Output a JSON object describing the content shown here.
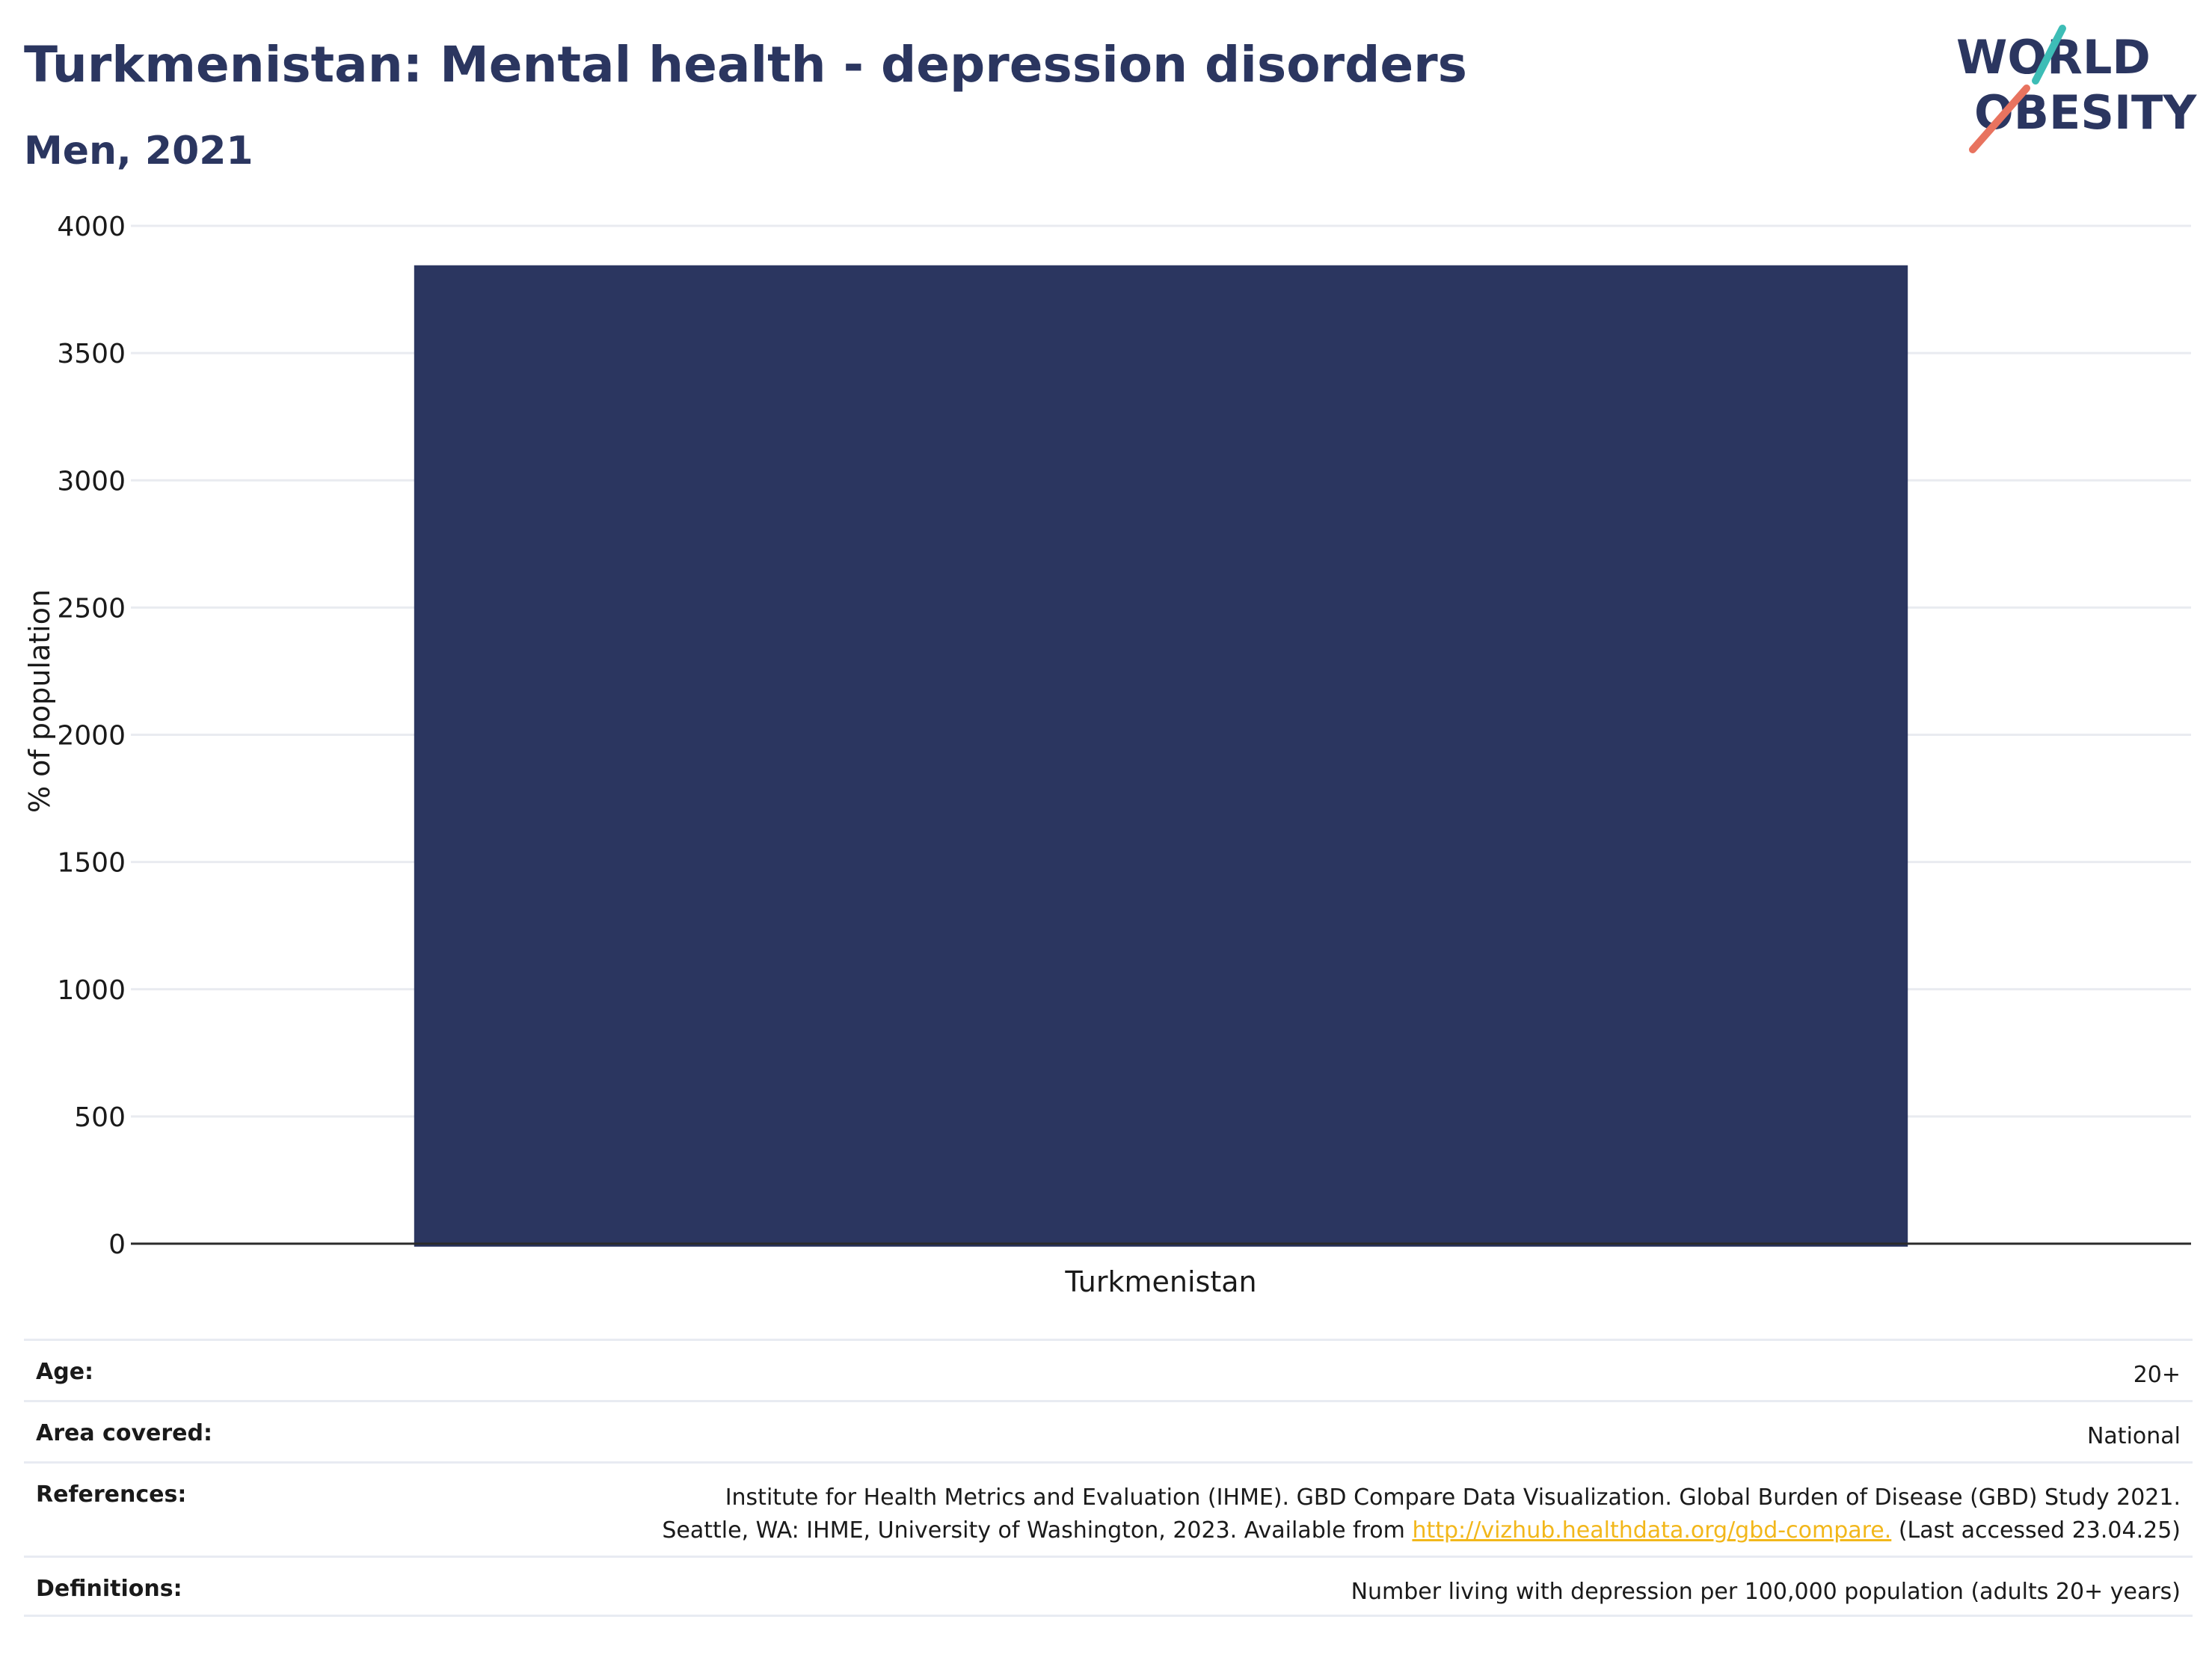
{
  "header": {
    "title": "Turkmenistan: Mental health - depression disorders",
    "subtitle": "Men, 2021"
  },
  "logo": {
    "line1": "WORLD",
    "line2": "OBESITY",
    "slash_colors": [
      "#3dbdb6",
      "#e8735f"
    ]
  },
  "chart_data": {
    "type": "bar",
    "categories": [
      "Turkmenistan"
    ],
    "series": [
      {
        "values": [
          3845
        ]
      }
    ],
    "ylabel": "% of population",
    "xlabel": "",
    "ylim": [
      0,
      4000
    ],
    "yticks": [
      0,
      500,
      1000,
      1500,
      2000,
      2500,
      3000,
      3500,
      4000
    ],
    "grid": true,
    "bar_color": "#2b3660"
  },
  "info": {
    "age_label": "Age:",
    "age_value": "20+",
    "area_label": "Area covered:",
    "area_value": "National",
    "references_label": "References:",
    "references_line1": "Institute for Health Metrics and Evaluation (IHME). GBD Compare Data Visualization. Global Burden of Disease (GBD) Study 2021.",
    "references_line2_pre": "Seattle, WA: IHME, University of Washington, 2023. Available from",
    "references_link": "http://vizhub.healthdata.org/gbd-compare.",
    "references_line2_post": "(Last accessed 23.04.25)",
    "definitions_label": "Definitions:",
    "definitions_value": "Number living with depression per 100,000 population (adults 20+ years)"
  }
}
